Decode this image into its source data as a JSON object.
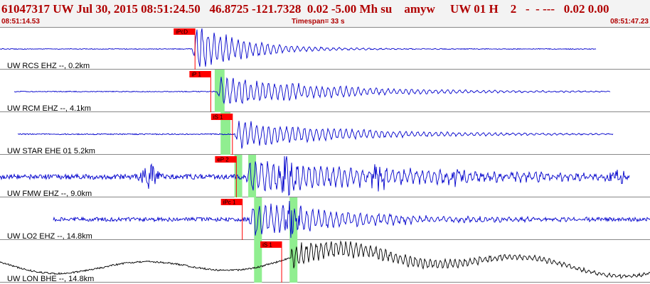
{
  "header": {
    "title": "61047317 UW Jul 30, 2015 08:51:24.50   46.8725 -121.7328  0.02 -5.00 Mh su    amyw     UW 01 H    2   -  - ---   0.02 0.00",
    "start_time": "08:51:14.53",
    "timespan": "Timespan=  33 s",
    "end_time": "08:51:47.23"
  },
  "colors": {
    "trace": "#0000cc",
    "trace_bb": "#000000",
    "pick_box": "#ff0000",
    "window": "#90ee90",
    "accent": "#b00000"
  },
  "channels": [
    {
      "label": "UW RCS EHZ --, 0.2km",
      "picks": [
        {
          "label": "iPcD",
          "t": 9.9
        }
      ],
      "windows": [],
      "color": "#0000cc"
    },
    {
      "label": "UW RCM EHZ --, 4.1km",
      "picks": [
        {
          "label": "iP 1",
          "t": 10.7
        }
      ],
      "windows": [
        10.9,
        11.4
      ],
      "color": "#0000cc"
    },
    {
      "label": "UW STAR EHE 01 5.2km",
      "picks": [
        {
          "label": "iS 1",
          "t": 11.8
        }
      ],
      "windows": [
        11.2,
        11.7
      ],
      "color": "#0000cc"
    },
    {
      "label": "UW FMW EHZ --, 9.0km",
      "picks": [
        {
          "label": "eP 2",
          "t": 12.0
        }
      ],
      "windows": [
        11.9,
        13.0
      ],
      "color": "#0000cc"
    },
    {
      "label": "UW LO2 EHZ --, 14.8km",
      "picks": [
        {
          "label": "iPc 1",
          "t": 12.3
        }
      ],
      "windows": [
        12.9,
        15.1
      ],
      "color": "#0000cc"
    },
    {
      "label": "UW LON BHE --, 14.8km",
      "picks": [
        {
          "label": "iS 1",
          "t": 14.3
        }
      ],
      "windows": [
        12.9,
        15.1
      ],
      "color": "#000000"
    }
  ]
}
